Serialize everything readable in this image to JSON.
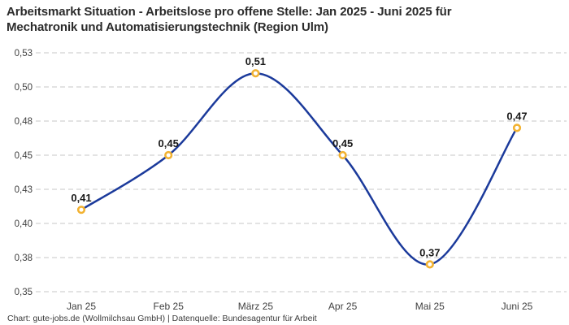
{
  "header": {
    "title_line1": "Arbeitsmarkt Situation - Arbeitslose pro offene Stelle: Jan 2025 - Juni 2025 für",
    "title_line2": "Mechatronik und Automatisierungstechnik (Region Ulm)"
  },
  "footer": {
    "attribution": "Chart: gute-jobs.de (Wollmilchsau GmbH) | Datenquelle: Bundesagentur für Arbeit"
  },
  "chart_data": {
    "type": "line",
    "title": "Arbeitsmarkt Situation - Arbeitslose pro offene Stelle: Jan 2025 - Juni 2025 für Mechatronik und Automatisierungstechnik (Region Ulm)",
    "categories": [
      "Jan 25",
      "Feb 25",
      "März 25",
      "Apr 25",
      "Mai 25",
      "Juni 25"
    ],
    "values": [
      0.41,
      0.45,
      0.51,
      0.45,
      0.37,
      0.47
    ],
    "value_labels": [
      "0,41",
      "0,45",
      "0,51",
      "0,45",
      "0,37",
      "0,47"
    ],
    "xlabel": "",
    "ylabel": "",
    "ylim": [
      0.35,
      0.525
    ],
    "ytick_values": [
      0.35,
      0.375,
      0.4,
      0.425,
      0.45,
      0.475,
      0.5,
      0.525
    ],
    "ytick_labels": [
      "0,35",
      "0,38",
      "0,40",
      "0,43",
      "0,45",
      "0,48",
      "0,50",
      "0,53"
    ],
    "grid": "horizontal-dashed",
    "legend": "none",
    "curve": "smooth",
    "line_color": "#1b3a9b",
    "marker_color": "#f2b231",
    "marker_fill": "#ffffff",
    "grid_color": "#c7c7c7",
    "title_color": "#2b2b2b",
    "axis_text_color": "#404040"
  }
}
